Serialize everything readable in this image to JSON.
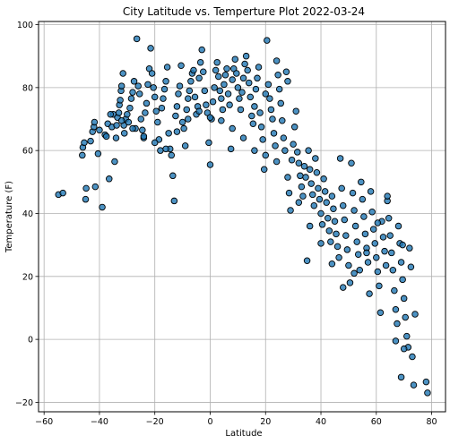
{
  "chart_data": {
    "type": "scatter",
    "title": "City Latitude vs. Temperture Plot 2022-03-24",
    "xlabel": "Latitude",
    "ylabel": "Temperature (F)",
    "xlim": [
      -62,
      85
    ],
    "ylim": [
      -23,
      101
    ],
    "xticks": [
      -60,
      -40,
      -20,
      0,
      20,
      40,
      60,
      80
    ],
    "yticks": [
      -20,
      0,
      20,
      40,
      60,
      80,
      100
    ],
    "grid": true,
    "legend": "none",
    "marker_color": "#1f77b4",
    "marker_edge_color": "#000000",
    "series": [
      {
        "points": [
          [
            -54.8,
            46.0
          ],
          [
            -53.2,
            46.5
          ],
          [
            -46.2,
            58.5
          ],
          [
            -46.0,
            61.0
          ],
          [
            -45.5,
            62.5
          ],
          [
            -45.0,
            44.5
          ],
          [
            -44.8,
            48.0
          ],
          [
            -43.2,
            63.0
          ],
          [
            -42.5,
            66.0
          ],
          [
            -42.0,
            67.5
          ],
          [
            -41.8,
            69.0
          ],
          [
            -41.5,
            48.5
          ],
          [
            -40.5,
            59.0
          ],
          [
            -39.0,
            42.0
          ],
          [
            -38.0,
            65.0
          ],
          [
            -37.5,
            64.5
          ],
          [
            -37.0,
            68.5
          ],
          [
            -36.5,
            51.0
          ],
          [
            -35.5,
            67.5
          ],
          [
            -35.0,
            71.5
          ],
          [
            -34.5,
            56.5
          ],
          [
            -34.0,
            64.0
          ],
          [
            -33.8,
            68.0
          ],
          [
            -33.5,
            70.5
          ],
          [
            -33.0,
            72.0
          ],
          [
            -32.8,
            74.5
          ],
          [
            -32.5,
            76.0
          ],
          [
            -32.2,
            79.0
          ],
          [
            -32.0,
            80.5
          ],
          [
            -31.5,
            84.5
          ],
          [
            -31.2,
            68.0
          ],
          [
            -31.0,
            65.5
          ],
          [
            -30.5,
            70.0
          ],
          [
            -30.0,
            71.5
          ],
          [
            -29.5,
            69.0
          ],
          [
            -29.0,
            73.5
          ],
          [
            -28.5,
            76.5
          ],
          [
            -28.0,
            78.5
          ],
          [
            -27.5,
            82.0
          ],
          [
            -27.0,
            67.0
          ],
          [
            -26.5,
            95.5
          ],
          [
            -26.0,
            80.5
          ],
          [
            -25.5,
            78.0
          ],
          [
            -25.0,
            70.0
          ],
          [
            -24.5,
            66.5
          ],
          [
            -24.0,
            64.0
          ],
          [
            -23.5,
            72.0
          ],
          [
            -23.0,
            75.0
          ],
          [
            -22.5,
            81.0
          ],
          [
            -22.0,
            86.0
          ],
          [
            -21.5,
            92.5
          ],
          [
            -21.0,
            84.5
          ],
          [
            -20.5,
            80.0
          ],
          [
            -20.0,
            77.0
          ],
          [
            -19.5,
            72.5
          ],
          [
            -19.0,
            69.0
          ],
          [
            -18.5,
            63.5
          ],
          [
            -18.0,
            60.0
          ],
          [
            -17.5,
            73.5
          ],
          [
            -17.0,
            76.5
          ],
          [
            -16.5,
            79.5
          ],
          [
            -16.0,
            82.0
          ],
          [
            -15.5,
            86.5
          ],
          [
            -15.0,
            65.5
          ],
          [
            -14.5,
            60.5
          ],
          [
            -14.0,
            58.5
          ],
          [
            -13.5,
            52.0
          ],
          [
            -13.0,
            44.0
          ],
          [
            -12.5,
            71.0
          ],
          [
            -12.0,
            74.0
          ],
          [
            -11.5,
            78.0
          ],
          [
            -11.0,
            80.5
          ],
          [
            -10.5,
            87.0
          ],
          [
            -10.0,
            69.0
          ],
          [
            -9.5,
            67.0
          ],
          [
            -9.0,
            61.5
          ],
          [
            -8.5,
            73.0
          ],
          [
            -8.0,
            76.5
          ],
          [
            -7.5,
            79.0
          ],
          [
            -7.0,
            82.0
          ],
          [
            -6.5,
            84.5
          ],
          [
            -6.0,
            85.5
          ],
          [
            -5.5,
            77.0
          ],
          [
            -5.0,
            71.5
          ],
          [
            -4.5,
            74.0
          ],
          [
            -4.0,
            83.0
          ],
          [
            -3.5,
            88.0
          ],
          [
            -3.0,
            92.0
          ],
          [
            -2.5,
            85.0
          ],
          [
            -2.0,
            79.0
          ],
          [
            -1.5,
            74.5
          ],
          [
            -1.0,
            72.0
          ],
          [
            -0.5,
            62.5
          ],
          [
            0.0,
            55.5
          ],
          [
            0.5,
            70.0
          ],
          [
            1.0,
            75.5
          ],
          [
            1.5,
            80.0
          ],
          [
            2.0,
            85.5
          ],
          [
            2.5,
            88.0
          ],
          [
            3.0,
            83.5
          ],
          [
            3.5,
            79.0
          ],
          [
            4.0,
            76.5
          ],
          [
            4.5,
            73.0
          ],
          [
            5.0,
            81.0
          ],
          [
            5.5,
            84.0
          ],
          [
            6.0,
            86.0
          ],
          [
            6.5,
            78.0
          ],
          [
            7.0,
            74.5
          ],
          [
            7.5,
            60.5
          ],
          [
            8.0,
            82.5
          ],
          [
            8.5,
            86.0
          ],
          [
            9.0,
            89.0
          ],
          [
            9.5,
            84.5
          ],
          [
            10.0,
            80.0
          ],
          [
            10.5,
            76.5
          ],
          [
            11.0,
            73.0
          ],
          [
            11.5,
            78.5
          ],
          [
            12.0,
            83.0
          ],
          [
            12.5,
            87.5
          ],
          [
            13.0,
            90.0
          ],
          [
            13.5,
            85.5
          ],
          [
            14.0,
            81.5
          ],
          [
            14.5,
            77.0
          ],
          [
            15.0,
            71.0
          ],
          [
            15.5,
            68.5
          ],
          [
            16.0,
            74.0
          ],
          [
            16.5,
            79.5
          ],
          [
            17.0,
            83.0
          ],
          [
            17.5,
            86.5
          ],
          [
            18.0,
            72.0
          ],
          [
            18.5,
            67.5
          ],
          [
            19.0,
            63.5
          ],
          [
            19.5,
            54.0
          ],
          [
            20.0,
            78.0
          ],
          [
            20.5,
            95.0
          ],
          [
            21.0,
            81.0
          ],
          [
            21.5,
            76.5
          ],
          [
            22.0,
            73.0
          ],
          [
            22.5,
            70.0
          ],
          [
            23.0,
            65.5
          ],
          [
            23.5,
            61.5
          ],
          [
            24.0,
            88.5
          ],
          [
            24.5,
            84.0
          ],
          [
            25.0,
            79.5
          ],
          [
            25.5,
            75.0
          ],
          [
            26.0,
            69.5
          ],
          [
            26.5,
            64.0
          ],
          [
            27.0,
            60.0
          ],
          [
            27.5,
            85.0
          ],
          [
            28.0,
            82.0
          ],
          [
            28.5,
            46.5
          ],
          [
            29.0,
            41.0
          ],
          [
            29.5,
            57.0
          ],
          [
            30.0,
            62.0
          ],
          [
            30.5,
            67.5
          ],
          [
            31.0,
            72.5
          ],
          [
            31.5,
            59.5
          ],
          [
            32.0,
            56.0
          ],
          [
            32.5,
            52.0
          ],
          [
            33.0,
            48.5
          ],
          [
            33.5,
            45.5
          ],
          [
            34.0,
            55.0
          ],
          [
            34.5,
            51.5
          ],
          [
            35.0,
            25.0
          ],
          [
            35.5,
            60.0
          ],
          [
            36.0,
            54.0
          ],
          [
            36.5,
            49.5
          ],
          [
            37.0,
            46.0
          ],
          [
            37.5,
            42.5
          ],
          [
            38.0,
            57.5
          ],
          [
            38.5,
            53.0
          ],
          [
            39.0,
            48.0
          ],
          [
            39.5,
            44.5
          ],
          [
            40.0,
            40.0
          ],
          [
            40.5,
            36.5
          ],
          [
            41.0,
            51.0
          ],
          [
            41.5,
            47.0
          ],
          [
            42.0,
            43.5
          ],
          [
            42.5,
            38.5
          ],
          [
            43.0,
            34.5
          ],
          [
            43.5,
            31.0
          ],
          [
            44.0,
            45.5
          ],
          [
            44.5,
            41.5
          ],
          [
            45.0,
            37.5
          ],
          [
            45.5,
            33.5
          ],
          [
            46.0,
            29.5
          ],
          [
            46.5,
            26.0
          ],
          [
            47.0,
            57.5
          ],
          [
            47.5,
            48.0
          ],
          [
            48.0,
            42.5
          ],
          [
            48.5,
            38.0
          ],
          [
            49.0,
            33.0
          ],
          [
            49.5,
            28.5
          ],
          [
            50.0,
            23.5
          ],
          [
            50.5,
            18.0
          ],
          [
            51.0,
            56.0
          ],
          [
            51.5,
            46.5
          ],
          [
            52.0,
            41.0
          ],
          [
            52.5,
            36.0
          ],
          [
            53.0,
            31.0
          ],
          [
            53.5,
            27.0
          ],
          [
            54.0,
            22.0
          ],
          [
            54.5,
            50.0
          ],
          [
            55.0,
            44.5
          ],
          [
            55.5,
            39.0
          ],
          [
            56.0,
            33.5
          ],
          [
            56.5,
            29.0
          ],
          [
            57.0,
            24.5
          ],
          [
            57.5,
            14.5
          ],
          [
            58.0,
            47.0
          ],
          [
            58.5,
            40.5
          ],
          [
            59.0,
            35.0
          ],
          [
            59.5,
            30.5
          ],
          [
            60.0,
            26.0
          ],
          [
            60.5,
            21.5
          ],
          [
            61.0,
            17.0
          ],
          [
            61.5,
            8.5
          ],
          [
            62.0,
            37.5
          ],
          [
            62.5,
            32.5
          ],
          [
            63.0,
            28.0
          ],
          [
            63.5,
            23.5
          ],
          [
            64.0,
            44.0
          ],
          [
            64.5,
            38.5
          ],
          [
            65.0,
            33.0
          ],
          [
            65.5,
            27.5
          ],
          [
            66.0,
            22.0
          ],
          [
            66.5,
            15.5
          ],
          [
            67.0,
            9.5
          ],
          [
            67.5,
            5.0
          ],
          [
            68.0,
            36.0
          ],
          [
            68.5,
            30.5
          ],
          [
            69.0,
            24.5
          ],
          [
            69.5,
            19.0
          ],
          [
            70.0,
            13.0
          ],
          [
            70.5,
            7.0
          ],
          [
            71.0,
            1.0
          ],
          [
            71.5,
            -2.5
          ],
          [
            72.0,
            29.0
          ],
          [
            72.5,
            23.0
          ],
          [
            73.0,
            -5.5
          ],
          [
            73.5,
            -14.5
          ],
          [
            74.0,
            8.0
          ],
          [
            78.0,
            -13.5
          ],
          [
            78.5,
            -17.0
          ],
          [
            69.0,
            -12.0
          ],
          [
            67.0,
            -0.5
          ],
          [
            70.0,
            -3.0
          ],
          [
            69.5,
            30.0
          ],
          [
            64.0,
            45.5
          ],
          [
            60.5,
            37.0
          ],
          [
            56.5,
            27.5
          ],
          [
            52.0,
            21.0
          ],
          [
            48.0,
            16.5
          ],
          [
            44.0,
            24.0
          ],
          [
            40.0,
            30.5
          ],
          [
            36.0,
            36.0
          ],
          [
            32.0,
            43.5
          ],
          [
            28.0,
            51.5
          ],
          [
            24.0,
            56.5
          ],
          [
            20.0,
            58.5
          ],
          [
            16.0,
            60.0
          ],
          [
            12.0,
            64.0
          ],
          [
            8.0,
            67.0
          ],
          [
            4.0,
            69.5
          ],
          [
            0.0,
            70.5
          ],
          [
            -4.0,
            72.5
          ],
          [
            -8.0,
            70.0
          ],
          [
            -12.0,
            66.0
          ],
          [
            -16.0,
            60.5
          ],
          [
            -20.0,
            62.5
          ],
          [
            -24.0,
            64.5
          ],
          [
            -28.0,
            67.0
          ],
          [
            -32.0,
            69.5
          ],
          [
            -36.0,
            71.5
          ],
          [
            -40.0,
            66.5
          ]
        ]
      }
    ]
  }
}
